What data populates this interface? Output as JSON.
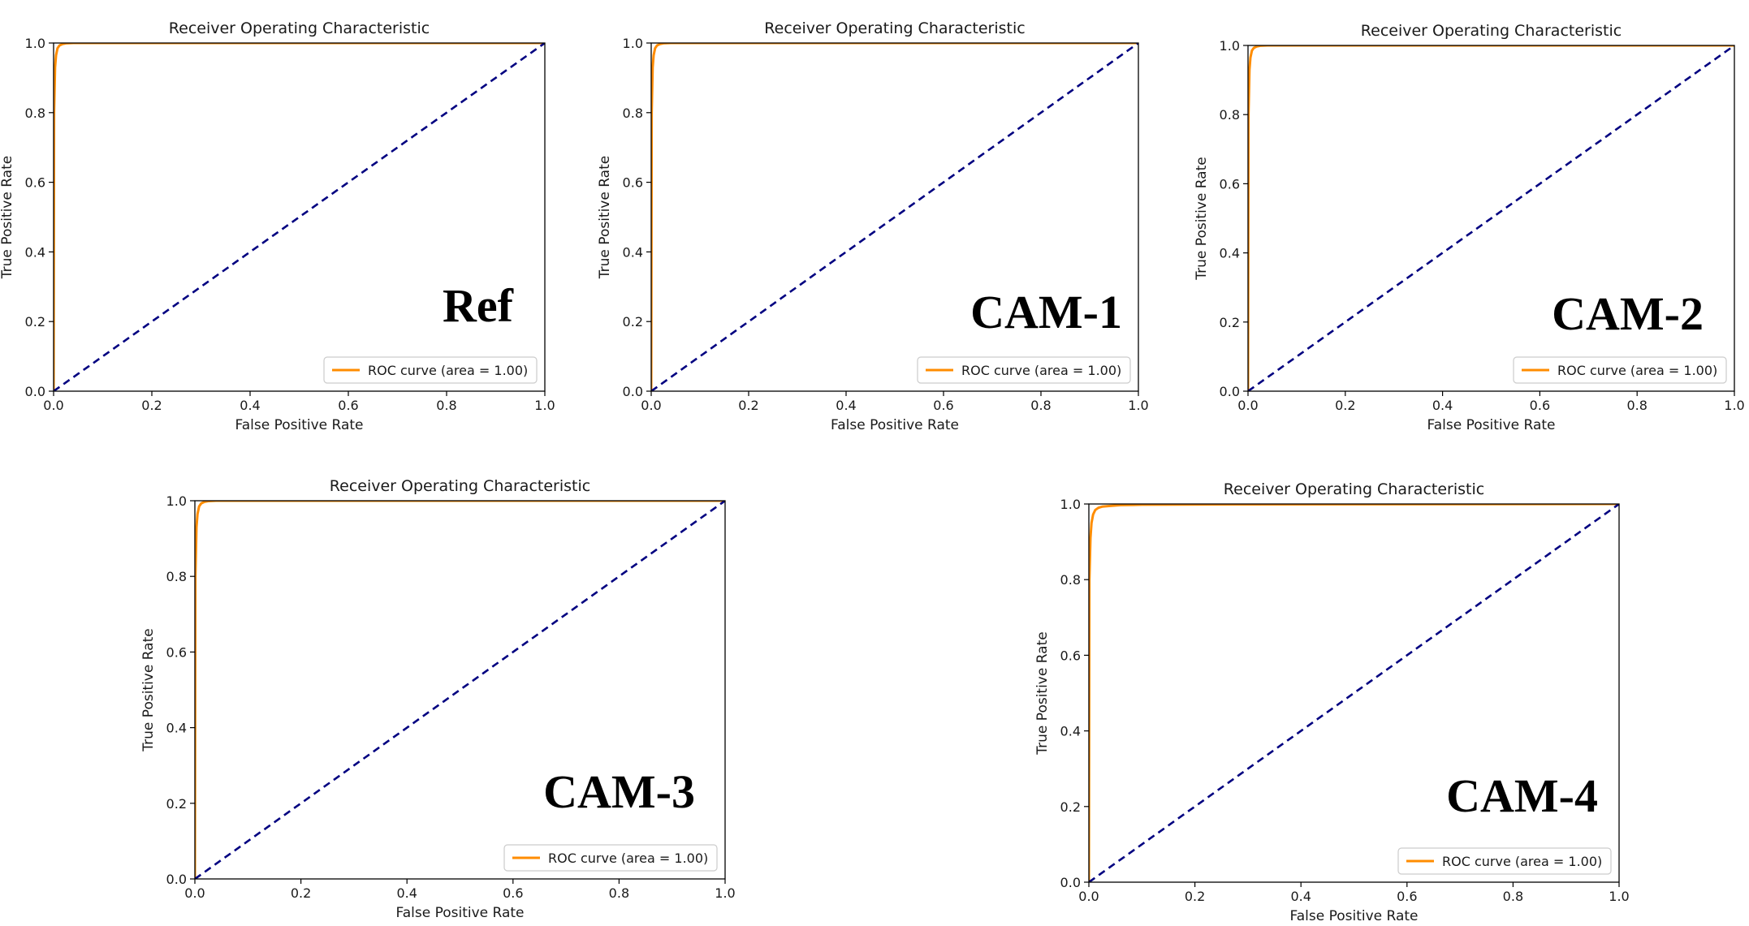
{
  "figure": {
    "panel_count": 5
  },
  "chart_data": [
    {
      "type": "line",
      "tag": "Ref",
      "title": "Receiver Operating Characteristic",
      "xlabel": "False Positive Rate",
      "ylabel": "True Positive Rate",
      "xlim": [
        0,
        1
      ],
      "ylim": [
        0,
        1
      ],
      "x_ticks": [
        "0.0",
        "0.2",
        "0.4",
        "0.6",
        "0.8",
        "1.0"
      ],
      "y_ticks": [
        "0.0",
        "0.2",
        "0.4",
        "0.6",
        "0.8",
        "1.0"
      ],
      "legend_position": "lower right",
      "grid": false,
      "series": [
        {
          "name": "ROC curve (area = 1.00)",
          "color": "#ff8c00",
          "style": "solid",
          "x": [
            0,
            0.001,
            0.003,
            0.005,
            0.008,
            0.012,
            0.018,
            0.025,
            0.04,
            0.1,
            1.0
          ],
          "y": [
            0,
            0.8,
            0.93,
            0.965,
            0.985,
            0.993,
            0.997,
            0.999,
            1.0,
            1.0,
            1.0
          ]
        },
        {
          "color": "#000080",
          "style": "dashed",
          "x": [
            0,
            1
          ],
          "y": [
            0,
            1
          ]
        }
      ]
    },
    {
      "type": "line",
      "tag": "CAM-1",
      "title": "Receiver Operating Characteristic",
      "xlabel": "False Positive Rate",
      "ylabel": "True Positive Rate",
      "xlim": [
        0,
        1
      ],
      "ylim": [
        0,
        1
      ],
      "x_ticks": [
        "0.0",
        "0.2",
        "0.4",
        "0.6",
        "0.8",
        "1.0"
      ],
      "y_ticks": [
        "0.0",
        "0.2",
        "0.4",
        "0.6",
        "0.8",
        "1.0"
      ],
      "legend_position": "lower right",
      "grid": false,
      "series": [
        {
          "name": "ROC curve (area = 1.00)",
          "color": "#ff8c00",
          "style": "solid",
          "x": [
            0,
            0.001,
            0.003,
            0.005,
            0.008,
            0.012,
            0.018,
            0.025,
            0.04,
            0.1,
            1.0
          ],
          "y": [
            0,
            0.8,
            0.93,
            0.965,
            0.985,
            0.993,
            0.997,
            0.999,
            1.0,
            1.0,
            1.0
          ]
        },
        {
          "color": "#000080",
          "style": "dashed",
          "x": [
            0,
            1
          ],
          "y": [
            0,
            1
          ]
        }
      ]
    },
    {
      "type": "line",
      "tag": "CAM-2",
      "title": "Receiver Operating Characteristic",
      "xlabel": "False Positive Rate",
      "ylabel": "True Positive Rate",
      "xlim": [
        0,
        1
      ],
      "ylim": [
        0,
        1
      ],
      "x_ticks": [
        "0.0",
        "0.2",
        "0.4",
        "0.6",
        "0.8",
        "1.0"
      ],
      "y_ticks": [
        "0.0",
        "0.2",
        "0.4",
        "0.6",
        "0.8",
        "1.0"
      ],
      "legend_position": "lower right",
      "grid": false,
      "series": [
        {
          "name": "ROC curve (area = 1.00)",
          "color": "#ff8c00",
          "style": "solid",
          "x": [
            0,
            0.001,
            0.003,
            0.005,
            0.008,
            0.012,
            0.018,
            0.025,
            0.04,
            0.1,
            1.0
          ],
          "y": [
            0,
            0.8,
            0.93,
            0.965,
            0.985,
            0.993,
            0.997,
            0.999,
            1.0,
            1.0,
            1.0
          ]
        },
        {
          "color": "#000080",
          "style": "dashed",
          "x": [
            0,
            1
          ],
          "y": [
            0,
            1
          ]
        }
      ]
    },
    {
      "type": "line",
      "tag": "CAM-3",
      "title": "Receiver Operating Characteristic",
      "xlabel": "False Positive Rate",
      "ylabel": "True Positive Rate",
      "xlim": [
        0,
        1
      ],
      "ylim": [
        0,
        1
      ],
      "x_ticks": [
        "0.0",
        "0.2",
        "0.4",
        "0.6",
        "0.8",
        "1.0"
      ],
      "y_ticks": [
        "0.0",
        "0.2",
        "0.4",
        "0.6",
        "0.8",
        "1.0"
      ],
      "legend_position": "lower right",
      "grid": false,
      "series": [
        {
          "name": "ROC curve (area = 1.00)",
          "color": "#ff8c00",
          "style": "solid",
          "x": [
            0,
            0.001,
            0.003,
            0.005,
            0.008,
            0.012,
            0.018,
            0.025,
            0.04,
            0.1,
            1.0
          ],
          "y": [
            0,
            0.8,
            0.93,
            0.965,
            0.985,
            0.993,
            0.997,
            0.999,
            1.0,
            1.0,
            1.0
          ]
        },
        {
          "color": "#000080",
          "style": "dashed",
          "x": [
            0,
            1
          ],
          "y": [
            0,
            1
          ]
        }
      ]
    },
    {
      "type": "line",
      "tag": "CAM-4",
      "title": "Receiver Operating Characteristic",
      "xlabel": "False Positive Rate",
      "ylabel": "True Positive Rate",
      "xlim": [
        0,
        1
      ],
      "ylim": [
        0,
        1
      ],
      "x_ticks": [
        "0.0",
        "0.2",
        "0.4",
        "0.6",
        "0.8",
        "1.0"
      ],
      "y_ticks": [
        "0.0",
        "0.2",
        "0.4",
        "0.6",
        "0.8",
        "1.0"
      ],
      "legend_position": "lower right",
      "grid": false,
      "series": [
        {
          "name": "ROC curve (area = 1.00)",
          "color": "#ff8c00",
          "style": "solid",
          "x": [
            0,
            0.001,
            0.003,
            0.005,
            0.008,
            0.012,
            0.018,
            0.025,
            0.04,
            0.06,
            0.1,
            0.3,
            1.0
          ],
          "y": [
            0,
            0.8,
            0.91,
            0.95,
            0.972,
            0.984,
            0.99,
            0.993,
            0.995,
            0.997,
            0.998,
            0.999,
            1.0
          ]
        },
        {
          "color": "#000080",
          "style": "dashed",
          "x": [
            0,
            1
          ],
          "y": [
            0,
            1
          ]
        }
      ]
    }
  ]
}
